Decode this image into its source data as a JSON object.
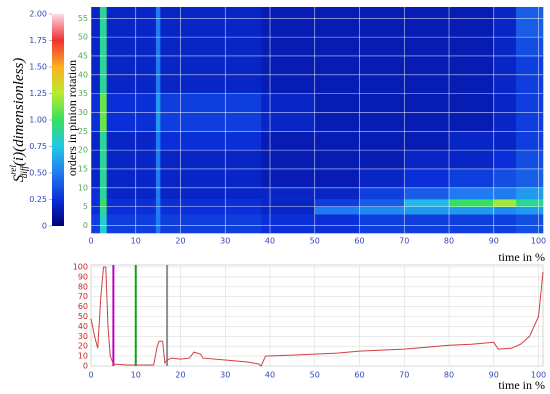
{
  "chart_data": [
    {
      "type": "heatmap",
      "xlabel": "time in %",
      "ylabel": "orders in pinion rotation",
      "colorbar_label": {
        "base": "S",
        "sup": "rel",
        "sub": "diff",
        "rest": "(i)(dimensionless)"
      },
      "xlim": [
        0,
        101
      ],
      "ylim": [
        -2,
        58
      ],
      "xticks": [
        0,
        10,
        20,
        30,
        40,
        50,
        60,
        70,
        80,
        90,
        100
      ],
      "yticks": [
        0,
        5,
        10,
        15,
        20,
        25,
        30,
        35,
        40,
        45,
        50,
        55
      ],
      "grid": true,
      "grid_color": "#ffffff",
      "zlim": [
        0,
        2
      ],
      "zticks": [
        0,
        0.25,
        {
          "value": 0.5,
          "label": "0.50"
        },
        0.75,
        {
          "value": 1,
          "label": "1.00"
        },
        1.25,
        {
          "value": 1.5,
          "label": "1.50"
        },
        1.75,
        {
          "value": 2,
          "label": "2.00"
        }
      ],
      "colorscale": [
        "#00007a",
        "#0a2fd8",
        "#1f7cf0",
        "#22c8e8",
        "#35e060",
        "#b8ec2c",
        "#ffb020",
        "#f03030",
        "#ffd8e8"
      ],
      "x_edges": [
        0,
        2,
        3.5,
        14.5,
        15.5,
        38,
        50,
        60,
        70,
        80,
        90,
        95,
        101
      ],
      "y_edges": [
        -2,
        3,
        5,
        7,
        10,
        15,
        20,
        25,
        30,
        35,
        40,
        45,
        50,
        55,
        58
      ],
      "z": [
        [
          0.3,
          0.8,
          0.3,
          0.5,
          0.3,
          0.25,
          0.25,
          0.3,
          0.3,
          0.3,
          0.3,
          0.35
        ],
        [
          0.25,
          0.9,
          0.25,
          0.5,
          0.25,
          0.2,
          0.5,
          0.55,
          0.6,
          0.6,
          0.55,
          0.6
        ],
        [
          0.25,
          1.0,
          0.25,
          0.5,
          0.25,
          0.2,
          0.3,
          0.4,
          0.7,
          1.0,
          1.2,
          0.9
        ],
        [
          0.25,
          0.9,
          0.2,
          0.5,
          0.2,
          0.2,
          0.2,
          0.3,
          0.4,
          0.5,
          0.5,
          0.6
        ],
        [
          0.2,
          0.9,
          0.2,
          0.5,
          0.2,
          0.15,
          0.15,
          0.2,
          0.25,
          0.3,
          0.35,
          0.4
        ],
        [
          0.2,
          0.9,
          0.2,
          0.5,
          0.2,
          0.15,
          0.15,
          0.15,
          0.2,
          0.2,
          0.25,
          0.35
        ],
        [
          0.2,
          0.9,
          0.2,
          0.5,
          0.25,
          0.15,
          0.15,
          0.15,
          0.15,
          0.2,
          0.2,
          0.3
        ],
        [
          0.25,
          1.1,
          0.25,
          0.6,
          0.3,
          0.2,
          0.15,
          0.15,
          0.15,
          0.15,
          0.2,
          0.3
        ],
        [
          0.25,
          1.1,
          0.25,
          0.6,
          0.3,
          0.2,
          0.15,
          0.15,
          0.15,
          0.15,
          0.2,
          0.3
        ],
        [
          0.2,
          0.9,
          0.2,
          0.5,
          0.2,
          0.15,
          0.15,
          0.15,
          0.15,
          0.15,
          0.2,
          0.3
        ],
        [
          0.2,
          0.9,
          0.2,
          0.5,
          0.2,
          0.15,
          0.15,
          0.15,
          0.15,
          0.15,
          0.2,
          0.3
        ],
        [
          0.2,
          0.9,
          0.2,
          0.5,
          0.2,
          0.15,
          0.15,
          0.15,
          0.15,
          0.15,
          0.2,
          0.35
        ],
        [
          0.2,
          0.9,
          0.2,
          0.5,
          0.2,
          0.15,
          0.15,
          0.15,
          0.15,
          0.15,
          0.2,
          0.4
        ],
        [
          0.2,
          0.9,
          0.2,
          0.5,
          0.2,
          0.15,
          0.15,
          0.15,
          0.15,
          0.15,
          0.2,
          0.4
        ]
      ]
    },
    {
      "type": "line",
      "xlabel": "time in %",
      "xlim": [
        0,
        101
      ],
      "ylim": [
        0,
        100
      ],
      "xticks": [
        0,
        10,
        20,
        30,
        40,
        50,
        60,
        70,
        80,
        90,
        100
      ],
      "yticks": [
        0,
        10,
        20,
        30,
        40,
        50,
        60,
        70,
        80,
        90,
        100
      ],
      "grid": true,
      "grid_color": "#dddddd",
      "x": [
        0,
        0.8,
        1.5,
        2.2,
        2.8,
        3.3,
        3.8,
        4.3,
        5,
        8,
        14,
        14.8,
        15.2,
        16,
        16.5,
        17,
        18,
        20,
        22,
        23,
        24.5,
        25,
        30,
        35,
        37.5,
        38,
        39,
        45,
        50,
        55,
        60,
        65,
        70,
        75,
        80,
        85,
        90,
        91,
        94,
        96,
        98,
        100,
        101
      ],
      "series": [
        {
          "color": "#d04040",
          "values": [
            48,
            30,
            18,
            70,
            100,
            100,
            40,
            10,
            2,
            1,
            1,
            20,
            25,
            25,
            3,
            6,
            8,
            7,
            8,
            14,
            12,
            8,
            6,
            4,
            2,
            0,
            10,
            11,
            12,
            13,
            15,
            16,
            17,
            19,
            21,
            22,
            24,
            17,
            18,
            22,
            30,
            50,
            95
          ]
        }
      ],
      "vlines": [
        {
          "x": 5,
          "color": "#c000c0"
        },
        {
          "x": 10,
          "color": "#10a010"
        },
        {
          "x": 17,
          "color": "#909090"
        }
      ]
    }
  ]
}
